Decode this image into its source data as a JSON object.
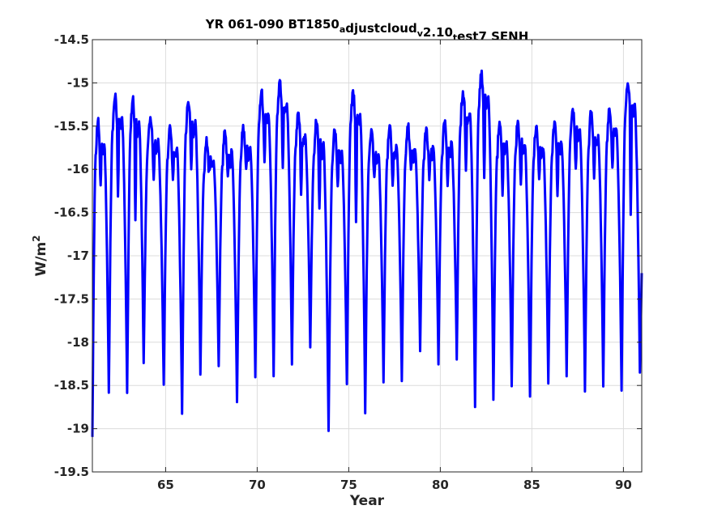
{
  "chart_data": {
    "type": "line",
    "title": {
      "segments": [
        {
          "text": "YR 061-090 BT1850",
          "shift": "none"
        },
        {
          "text": "a",
          "shift": "sub"
        },
        {
          "text": "djustcloud",
          "shift": "none"
        },
        {
          "text": "v",
          "shift": "sub"
        },
        {
          "text": "2.10",
          "shift": "none"
        },
        {
          "text": "t",
          "shift": "sub"
        },
        {
          "text": "est7 SENH",
          "shift": "none"
        }
      ]
    },
    "xlabel": "Year",
    "ylabel": {
      "base": "W/m",
      "sup": "2"
    },
    "xlim": [
      61,
      91
    ],
    "ylim": [
      -19.5,
      -14.5
    ],
    "xticks": [
      65,
      70,
      75,
      80,
      85,
      90
    ],
    "xtick_labels": [
      "65",
      "70",
      "75",
      "80",
      "85",
      "90"
    ],
    "yticks": [
      -14.5,
      -15,
      -15.5,
      -16,
      -16.5,
      -17,
      -17.5,
      -18,
      -18.5,
      -19,
      -19.5
    ],
    "ytick_labels": [
      "-14.5",
      "-15",
      "-15.5",
      "-16",
      "-16.5",
      "-17",
      "-17.5",
      "-18",
      "-18.5",
      "-19",
      "-19.5"
    ],
    "grid": true,
    "box": true,
    "series": [
      {
        "color": "#0000ff",
        "peak_years": [
          61.2,
          62.4,
          63.4,
          64.4,
          65.4,
          66.5,
          67.5,
          68.5,
          69.5,
          70.5,
          71.4,
          72.5,
          73.5,
          74.5,
          75.5,
          76.5,
          77.5,
          78.5,
          79.5,
          80.5,
          81.5,
          82.5,
          83.5,
          84.5,
          85.5,
          86.5,
          87.5,
          88.5,
          89.5,
          90.5
        ],
        "peak_values": [
          -15.45,
          -15.15,
          -15.2,
          -15.4,
          -15.5,
          -15.2,
          -15.65,
          -15.55,
          -15.5,
          -15.1,
          -14.98,
          -15.35,
          -15.45,
          -15.55,
          -15.1,
          -15.55,
          -15.5,
          -15.5,
          -15.5,
          -15.45,
          -15.1,
          -14.9,
          -15.45,
          -15.45,
          -15.5,
          -15.45,
          -15.3,
          -15.35,
          -15.3,
          -15.0
        ],
        "trough_years": [
          61.0,
          61.9,
          62.9,
          63.8,
          64.9,
          65.9,
          66.9,
          67.9,
          68.9,
          69.9,
          70.9,
          71.9,
          72.9,
          73.9,
          74.9,
          75.9,
          76.9,
          77.9,
          78.9,
          79.9,
          80.9,
          81.9,
          82.9,
          83.9,
          84.9,
          85.9,
          86.9,
          87.9,
          88.9,
          89.9,
          90.9
        ],
        "trough_values": [
          -19.1,
          -18.6,
          -18.6,
          -18.25,
          -18.5,
          -18.85,
          -18.35,
          -18.3,
          -18.7,
          -18.4,
          -18.4,
          -18.25,
          -18.05,
          -19.02,
          -18.5,
          -18.8,
          -18.45,
          -18.45,
          -18.1,
          -18.25,
          -18.2,
          -18.75,
          -18.65,
          -18.5,
          -18.65,
          -18.5,
          -18.4,
          -18.55,
          -18.5,
          -18.55,
          -18.35
        ],
        "secondary_dip_values": [
          -16.2,
          -16.3,
          -16.6,
          -16.1,
          -16.1,
          -16.0,
          -16.0,
          -16.1,
          -16.0,
          -15.9,
          -16.0,
          -16.3,
          -16.45,
          -16.2,
          -16.6,
          -16.1,
          -16.2,
          -16.0,
          -16.1,
          -16.2,
          -16.0,
          -16.1,
          -16.3,
          -16.2,
          -16.1,
          -16.3,
          -16.0,
          -16.1,
          -16.0,
          -16.5
        ]
      }
    ]
  }
}
